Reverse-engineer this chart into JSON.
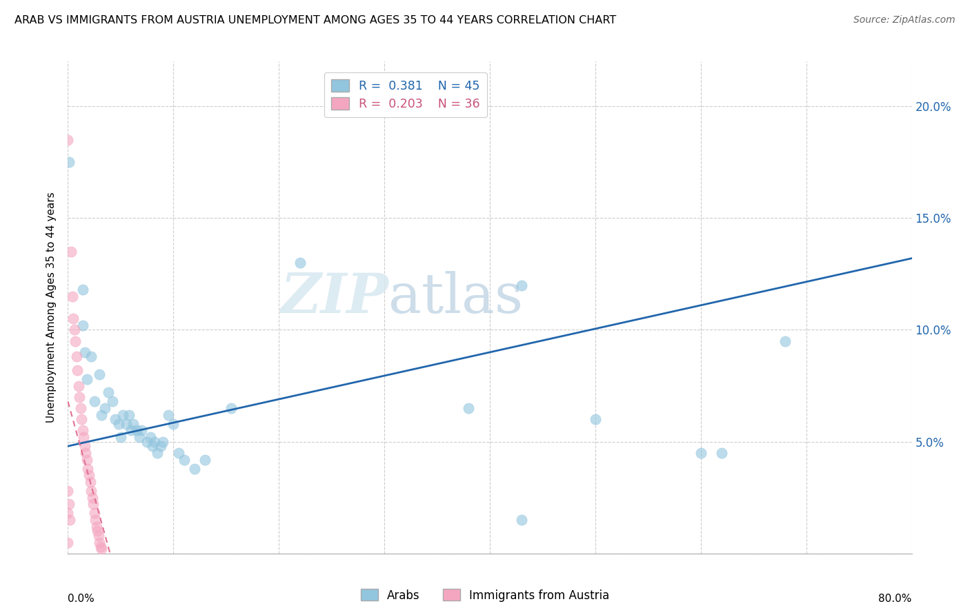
{
  "title": "ARAB VS IMMIGRANTS FROM AUSTRIA UNEMPLOYMENT AMONG AGES 35 TO 44 YEARS CORRELATION CHART",
  "source": "Source: ZipAtlas.com",
  "ylabel": "Unemployment Among Ages 35 to 44 years",
  "legend_arab_R": "0.381",
  "legend_arab_N": "45",
  "legend_immig_R": "0.203",
  "legend_immig_N": "36",
  "arab_color": "#92c5de",
  "immig_color": "#f4a6c0",
  "trendline_arab_color": "#2166ac",
  "trendline_immig_color": "#e07090",
  "watermark_zip": "ZIP",
  "watermark_atlas": "atlas",
  "arab_points": [
    [
      0.001,
      0.175
    ],
    [
      0.014,
      0.118
    ],
    [
      0.014,
      0.102
    ],
    [
      0.016,
      0.09
    ],
    [
      0.018,
      0.078
    ],
    [
      0.022,
      0.088
    ],
    [
      0.025,
      0.068
    ],
    [
      0.03,
      0.08
    ],
    [
      0.032,
      0.062
    ],
    [
      0.035,
      0.065
    ],
    [
      0.038,
      0.072
    ],
    [
      0.042,
      0.068
    ],
    [
      0.045,
      0.06
    ],
    [
      0.048,
      0.058
    ],
    [
      0.05,
      0.052
    ],
    [
      0.052,
      0.062
    ],
    [
      0.055,
      0.058
    ],
    [
      0.058,
      0.062
    ],
    [
      0.06,
      0.055
    ],
    [
      0.062,
      0.058
    ],
    [
      0.065,
      0.055
    ],
    [
      0.068,
      0.052
    ],
    [
      0.07,
      0.055
    ],
    [
      0.075,
      0.05
    ],
    [
      0.078,
      0.052
    ],
    [
      0.08,
      0.048
    ],
    [
      0.082,
      0.05
    ],
    [
      0.085,
      0.045
    ],
    [
      0.088,
      0.048
    ],
    [
      0.09,
      0.05
    ],
    [
      0.095,
      0.062
    ],
    [
      0.1,
      0.058
    ],
    [
      0.105,
      0.045
    ],
    [
      0.11,
      0.042
    ],
    [
      0.12,
      0.038
    ],
    [
      0.13,
      0.042
    ],
    [
      0.155,
      0.065
    ],
    [
      0.22,
      0.13
    ],
    [
      0.38,
      0.065
    ],
    [
      0.43,
      0.12
    ],
    [
      0.5,
      0.06
    ],
    [
      0.6,
      0.045
    ],
    [
      0.62,
      0.045
    ],
    [
      0.68,
      0.095
    ],
    [
      0.43,
      0.015
    ]
  ],
  "immig_points": [
    [
      0.0,
      0.185
    ],
    [
      0.003,
      0.135
    ],
    [
      0.004,
      0.115
    ],
    [
      0.005,
      0.105
    ],
    [
      0.006,
      0.1
    ],
    [
      0.007,
      0.095
    ],
    [
      0.008,
      0.088
    ],
    [
      0.009,
      0.082
    ],
    [
      0.01,
      0.075
    ],
    [
      0.011,
      0.07
    ],
    [
      0.012,
      0.065
    ],
    [
      0.013,
      0.06
    ],
    [
      0.014,
      0.055
    ],
    [
      0.015,
      0.052
    ],
    [
      0.016,
      0.048
    ],
    [
      0.017,
      0.045
    ],
    [
      0.018,
      0.042
    ],
    [
      0.019,
      0.038
    ],
    [
      0.02,
      0.035
    ],
    [
      0.021,
      0.032
    ],
    [
      0.022,
      0.028
    ],
    [
      0.023,
      0.025
    ],
    [
      0.024,
      0.022
    ],
    [
      0.025,
      0.018
    ],
    [
      0.026,
      0.015
    ],
    [
      0.027,
      0.012
    ],
    [
      0.028,
      0.01
    ],
    [
      0.029,
      0.008
    ],
    [
      0.03,
      0.005
    ],
    [
      0.031,
      0.003
    ],
    [
      0.032,
      0.002
    ],
    [
      0.0,
      0.018
    ],
    [
      0.002,
      0.015
    ],
    [
      0.0,
      0.028
    ],
    [
      0.001,
      0.022
    ],
    [
      0.0,
      0.005
    ]
  ],
  "arab_trendline": [
    0.0,
    0.8,
    0.048,
    0.132
  ],
  "immig_trendline_x": [
    0.0,
    0.04
  ],
  "immig_trendline_y": [
    0.068,
    0.0
  ],
  "xlim": [
    0.0,
    0.8
  ],
  "ylim": [
    0.0,
    0.22
  ],
  "xticks": [
    0.0,
    0.1,
    0.2,
    0.3,
    0.4,
    0.5,
    0.6,
    0.7,
    0.8
  ],
  "ytick_vals": [
    0.0,
    0.05,
    0.1,
    0.15,
    0.2
  ],
  "ytick_labels": [
    "",
    "5.0%",
    "10.0%",
    "15.0%",
    "20.0%"
  ]
}
